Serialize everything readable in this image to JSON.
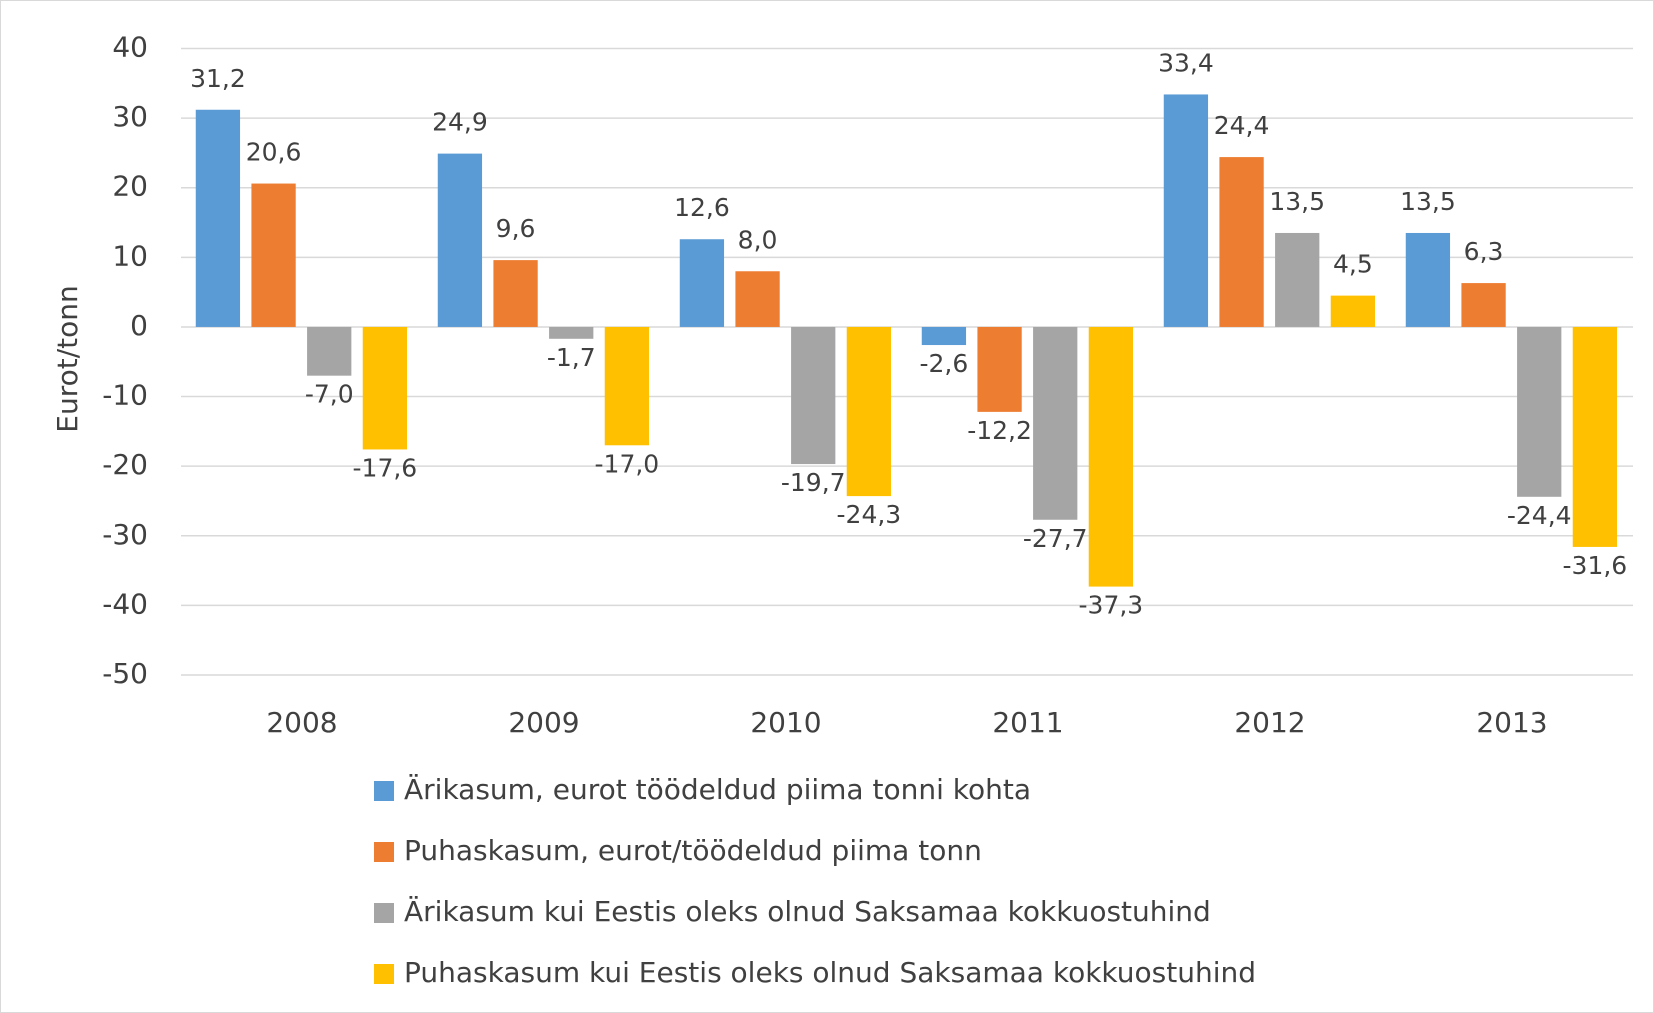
{
  "chart_data": {
    "type": "bar",
    "categories": [
      "2008",
      "2009",
      "2010",
      "2011",
      "2012",
      "2013"
    ],
    "y_axis_label": "Eurot/tonn",
    "ylim": [
      -50,
      40
    ],
    "yticks": [
      -50,
      -40,
      -30,
      -20,
      -10,
      0,
      10,
      20,
      30,
      40
    ],
    "grid": true,
    "legend": "bottom",
    "series": [
      {
        "name": "Ärikasum, eurot töödeldud piima tonni kohta",
        "color": "#5b9bd5",
        "values": [
          31.2,
          24.9,
          12.6,
          -2.6,
          33.4,
          13.5
        ],
        "value_labels": [
          "31,2",
          "24,9",
          "12,6",
          "-2,6",
          "33,4",
          "13,5"
        ]
      },
      {
        "name": "Puhaskasum, eurot/töödeldud piima tonn",
        "color": "#ed7d31",
        "values": [
          20.6,
          9.6,
          8.0,
          -12.2,
          24.4,
          6.3
        ],
        "value_labels": [
          "20,6",
          "9,6",
          "8,0",
          "-12,2",
          "24,4",
          "6,3"
        ]
      },
      {
        "name": "Ärikasum kui Eestis oleks olnud Saksamaa kokkuostuhind",
        "color": "#a5a5a5",
        "values": [
          -7.0,
          -1.7,
          -19.7,
          -27.7,
          13.5,
          -24.4
        ],
        "value_labels": [
          "-7,0",
          "-1,7",
          "-19,7",
          "-27,7",
          "13,5",
          "-24,4"
        ]
      },
      {
        "name": "Puhaskasum kui Eestis oleks olnud Saksamaa kokkuostuhind",
        "color": "#ffc000",
        "values": [
          -17.6,
          -17.0,
          -24.3,
          -37.3,
          4.5,
          -31.6
        ],
        "value_labels": [
          "-17,6",
          "-17,0",
          "-24,3",
          "-37,3",
          "4,5",
          "-31,6"
        ]
      }
    ]
  }
}
